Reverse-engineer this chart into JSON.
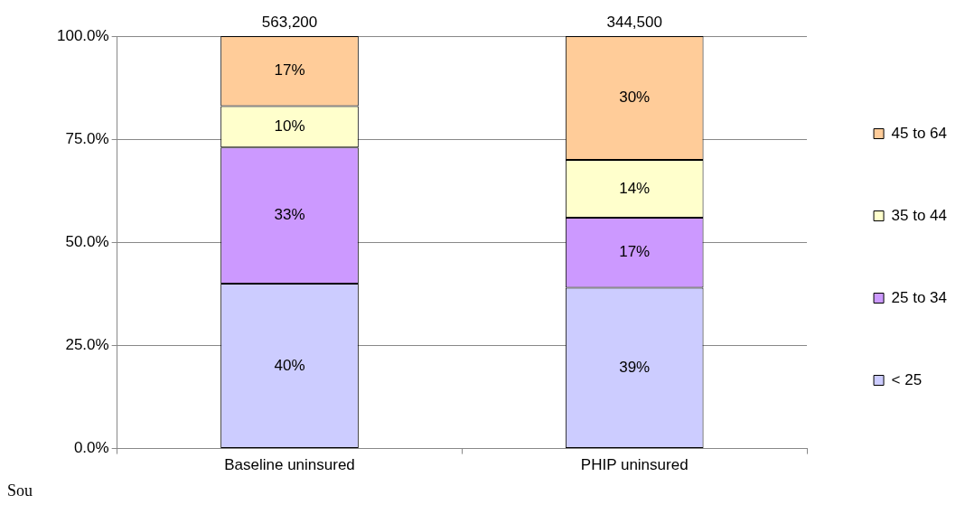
{
  "chart_data": {
    "type": "bar",
    "stacked": true,
    "categories": [
      "Baseline uninsured",
      "PHIP uninsured"
    ],
    "series": [
      {
        "name": "< 25",
        "color": "#ccccff",
        "values": [
          40,
          39
        ],
        "value_labels": [
          "40%",
          "39%"
        ]
      },
      {
        "name": "25 to 34",
        "color": "#cc99ff",
        "values": [
          33,
          17
        ],
        "value_labels": [
          "33%",
          "17%"
        ]
      },
      {
        "name": "35 to 44",
        "color": "#ffffcc",
        "values": [
          10,
          14
        ],
        "value_labels": [
          "10%",
          "14%"
        ]
      },
      {
        "name": "45 to 64",
        "color": "#ffcc99",
        "values": [
          17,
          30
        ],
        "value_labels": [
          "17%",
          "30%"
        ]
      }
    ],
    "ylim": [
      0,
      100
    ],
    "yticks": [
      {
        "value": 0,
        "label": "0.0%"
      },
      {
        "value": 25,
        "label": "25.0%"
      },
      {
        "value": 50,
        "label": "50.0%"
      },
      {
        "value": 75,
        "label": "75.0%"
      },
      {
        "value": 100,
        "label": "100.0%"
      }
    ],
    "grid": "y",
    "legend": "right",
    "annotations": [
      {
        "text": "563,200",
        "x": "Baseline uninsured",
        "y": 100
      },
      {
        "text": "344,500",
        "x": "PHIP uninsured",
        "y": 100
      },
      "Sou"
    ]
  }
}
